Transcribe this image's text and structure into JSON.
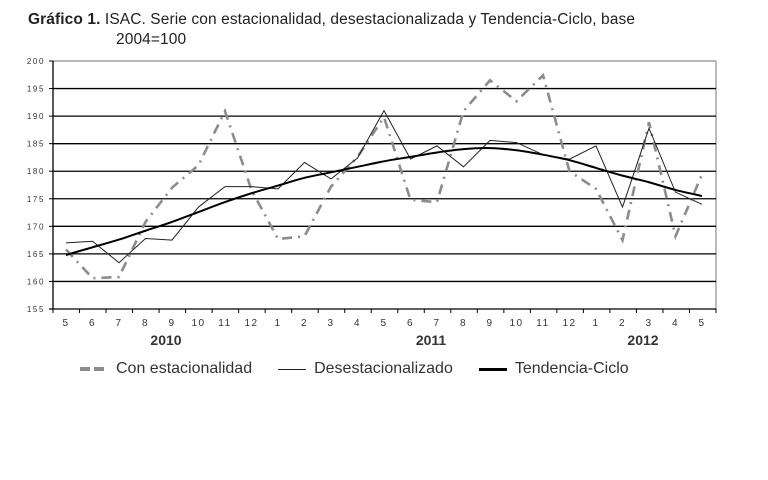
{
  "figure": {
    "label": "Gráfico 1.",
    "title_line1": "ISAC. Serie con estacionalidad, desestacionalizada y Tendencia-Ciclo, base",
    "title_line2": "2004=100"
  },
  "legend": {
    "items": [
      {
        "label": "Con estacionalidad",
        "style": "dash-dot gray"
      },
      {
        "label": "Desestacionalizado",
        "style": "thin black"
      },
      {
        "label": "Tendencia-Ciclo",
        "style": "thick black"
      }
    ]
  },
  "colors": {
    "con_estacionalidad": "#8c8c8c",
    "desestacionalizado": "#222222",
    "tendencia_ciclo": "#000000",
    "gridline": "#000000",
    "frame": "#8c8c8c"
  },
  "chart_data": {
    "type": "line",
    "title": "Gráfico 1. ISAC. Serie con estacionalidad, desestacionalizada y Tendencia-Ciclo, base 2004=100",
    "xlabel": "",
    "ylabel": "",
    "ylim": [
      155,
      200
    ],
    "yticks": [
      155,
      160,
      165,
      170,
      175,
      180,
      185,
      190,
      195,
      200
    ],
    "grid": true,
    "legend_position": "bottom",
    "categories": [
      "5",
      "6",
      "7",
      "8",
      "9",
      "10",
      "11",
      "12",
      "1",
      "2",
      "3",
      "4",
      "5",
      "6",
      "7",
      "8",
      "9",
      "10",
      "11",
      "12",
      "1",
      "2",
      "3",
      "4",
      "5"
    ],
    "year_labels": [
      {
        "label": "2010",
        "at_index": 4
      },
      {
        "label": "2011",
        "at_index": 14
      },
      {
        "label": "2012",
        "at_index": 22
      }
    ],
    "series": [
      {
        "name": "Con estacionalidad",
        "values": [
          165.8,
          160.6,
          160.8,
          170.8,
          177.0,
          181.1,
          190.9,
          176.6,
          167.7,
          168.2,
          177.2,
          182.6,
          189.8,
          174.8,
          174.4,
          190.9,
          196.5,
          192.7,
          197.4,
          180.0,
          176.8,
          167.5,
          188.9,
          168.2,
          179.4
        ]
      },
      {
        "name": "Desestacionalizado",
        "values": [
          167.0,
          167.3,
          163.4,
          167.8,
          167.5,
          173.5,
          177.2,
          177.2,
          176.8,
          181.6,
          178.6,
          182.4,
          191.0,
          182.2,
          184.6,
          180.8,
          185.6,
          185.2,
          183.0,
          182.2,
          184.6,
          173.5,
          187.8,
          176.2,
          174.0
        ]
      },
      {
        "name": "Tendencia-Ciclo",
        "values": [
          164.8,
          166.2,
          167.6,
          169.2,
          170.8,
          172.6,
          174.4,
          176.0,
          177.4,
          178.8,
          179.8,
          180.8,
          181.8,
          182.6,
          183.4,
          184.0,
          184.2,
          183.8,
          183.0,
          182.0,
          180.6,
          179.2,
          178.0,
          176.6,
          175.5
        ]
      }
    ]
  }
}
